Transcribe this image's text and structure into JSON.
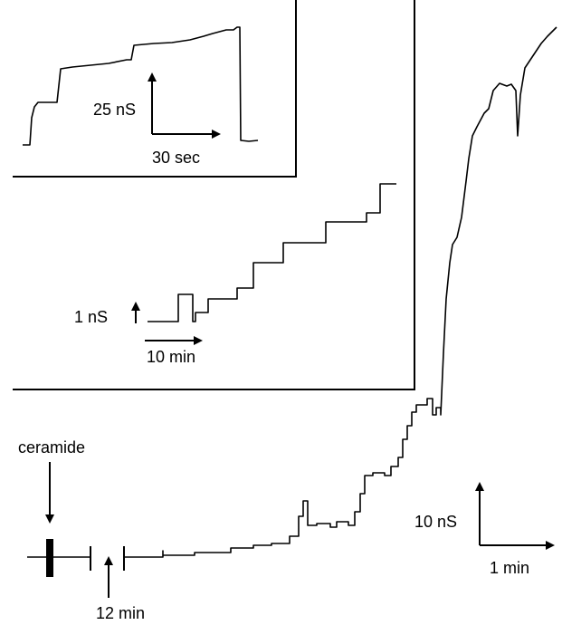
{
  "main": {
    "stimulus_label": "ceramide",
    "gap_label": "12 min",
    "y_scale_label": "10 nS",
    "x_scale_label": "1 min"
  },
  "middle_inset": {
    "y_scale_label": "1 nS",
    "x_scale_label": "10 min"
  },
  "top_inset": {
    "y_scale_label": "25 nS",
    "x_scale_label": "30 sec"
  }
}
